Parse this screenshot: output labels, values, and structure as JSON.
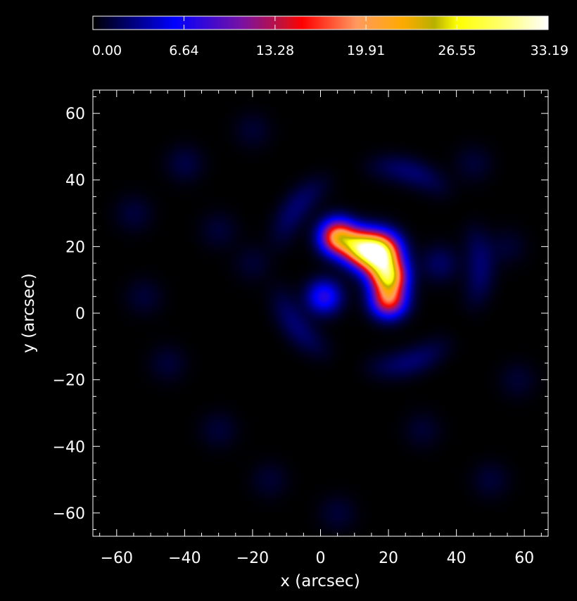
{
  "chart_data": {
    "type": "heatmap",
    "title": "",
    "xlabel": "x (arcsec)",
    "ylabel": "y (arcsec)",
    "xlim": [
      -67,
      67
    ],
    "ylim": [
      -67,
      67
    ],
    "x_ticks": [
      -60,
      -40,
      -20,
      0,
      20,
      40,
      60
    ],
    "y_ticks": [
      -60,
      -40,
      -20,
      0,
      20,
      40,
      60
    ],
    "x_tick_labels": [
      "−60",
      "−40",
      "−20",
      "0",
      "20",
      "40",
      "60"
    ],
    "y_tick_labels": [
      "−60",
      "−40",
      "−20",
      "0",
      "20",
      "40",
      "60"
    ],
    "colorbar": {
      "min": 0.0,
      "max": 33.19,
      "tick_values": [
        0.0,
        6.64,
        13.28,
        19.91,
        26.55,
        33.19
      ],
      "tick_labels": [
        "0.00",
        "6.64",
        "13.28",
        "19.91",
        "26.55",
        "33.19"
      ],
      "colormap_stops": [
        {
          "value": 0.0,
          "color": "#000000"
        },
        {
          "value": 0.18,
          "color": "#0000ff"
        },
        {
          "value": 0.33,
          "color": "#7a12a0"
        },
        {
          "value": 0.42,
          "color": "#c81030"
        },
        {
          "value": 0.46,
          "color": "#ff0000"
        },
        {
          "value": 0.58,
          "color": "#ff9a60"
        },
        {
          "value": 0.68,
          "color": "#ffaa00"
        },
        {
          "value": 0.75,
          "color": "#b8b000"
        },
        {
          "value": 0.8,
          "color": "#ffff00"
        },
        {
          "value": 0.9,
          "color": "#ffff70"
        },
        {
          "value": 1.0,
          "color": "#ffffff"
        }
      ]
    },
    "sources": [
      {
        "x": 5,
        "y": 23,
        "sigma": 3.5,
        "peak": 20
      },
      {
        "x": 11,
        "y": 20,
        "sigma": 3.5,
        "peak": 19
      },
      {
        "x": 17,
        "y": 18,
        "sigma": 4.0,
        "peak": 33
      },
      {
        "x": 20,
        "y": 11,
        "sigma": 3.5,
        "peak": 22
      },
      {
        "x": 20,
        "y": 4,
        "sigma": 3.5,
        "peak": 16
      },
      {
        "x": 1,
        "y": 5,
        "sigma": 3.5,
        "peak": 7.5
      }
    ],
    "sidelobe_ring": {
      "x": 17,
      "y": 14,
      "radius": 30,
      "peak": 2.5
    },
    "background_blobs": [
      {
        "x": -40,
        "y": 45,
        "peak": 1.5
      },
      {
        "x": -55,
        "y": 30,
        "peak": 1.3
      },
      {
        "x": -30,
        "y": 25,
        "peak": 1.2
      },
      {
        "x": -52,
        "y": 5,
        "peak": 1.2
      },
      {
        "x": -45,
        "y": -15,
        "peak": 1.2
      },
      {
        "x": -30,
        "y": -35,
        "peak": 1.2
      },
      {
        "x": -20,
        "y": 55,
        "peak": 1.1
      },
      {
        "x": 35,
        "y": 15,
        "peak": 2.2
      },
      {
        "x": 45,
        "y": 45,
        "peak": 1.2
      },
      {
        "x": 55,
        "y": 20,
        "peak": 1.1
      },
      {
        "x": 58,
        "y": -20,
        "peak": 1.1
      },
      {
        "x": 50,
        "y": -50,
        "peak": 1.2
      },
      {
        "x": 5,
        "y": -60,
        "peak": 1.2
      },
      {
        "x": -15,
        "y": -50,
        "peak": 1.1
      },
      {
        "x": 30,
        "y": -35,
        "peak": 1.1
      },
      {
        "x": -20,
        "y": 15,
        "peak": 1.1
      }
    ]
  }
}
